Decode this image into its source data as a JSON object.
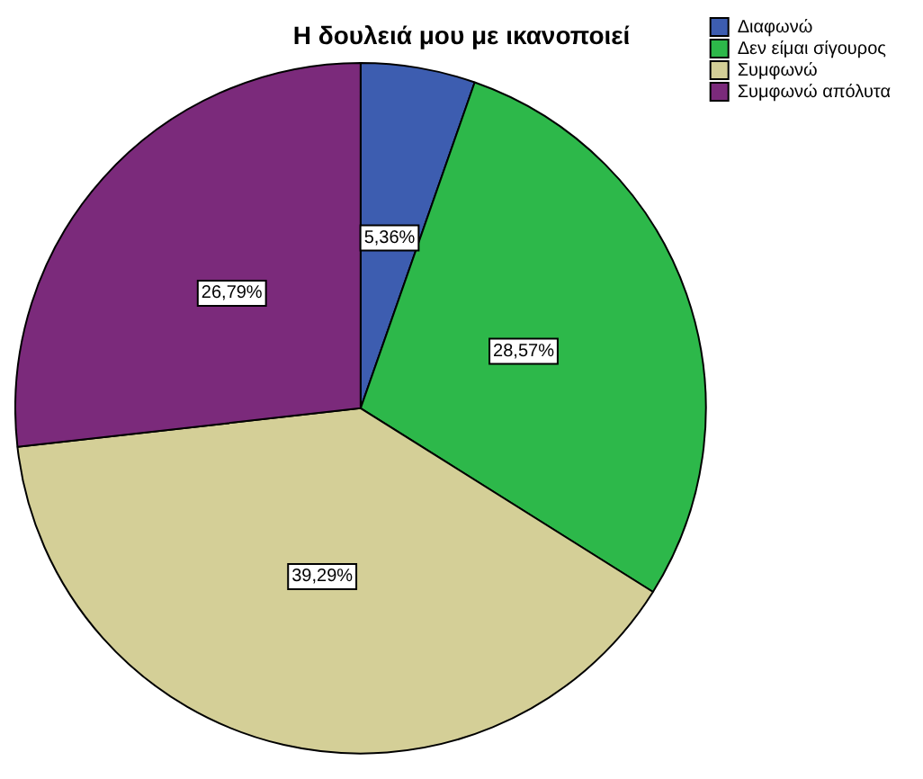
{
  "chart_data": {
    "type": "pie",
    "title": "Η δουλειά μου με ικανοποιεί",
    "categories": [
      "Διαφωνώ",
      "Δεν είμαι σίγουρος",
      "Συμφωνώ",
      "Συμφωνώ απόλυτα"
    ],
    "values": [
      5.36,
      28.57,
      39.29,
      26.79
    ],
    "colors": [
      "#3d5db0",
      "#2db84a",
      "#d4cf97",
      "#7b2a7b"
    ],
    "value_labels": [
      "5,36%",
      "28,57%",
      "39,29%",
      "26,79%"
    ],
    "legend": "top right"
  }
}
